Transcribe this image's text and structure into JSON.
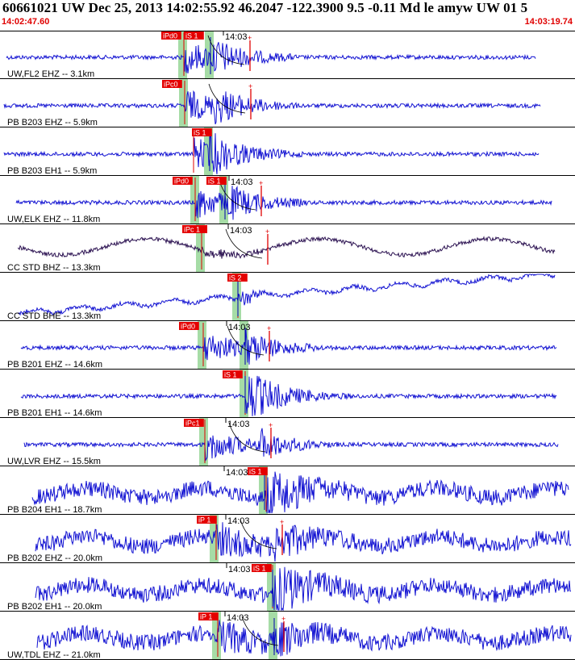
{
  "header": {
    "title": "60661021 UW Dec 25, 2013 14:02:55.92   46.2047 -122.3900  9.5 -0.11 Md le amyw UW 01   5",
    "start_time": "14:02:47.60",
    "end_time": "14:03:19.74"
  },
  "colors": {
    "background": "#ffffff",
    "trace": "#1414d2",
    "broadband_trace": "#2a1050",
    "pick_label_bg": "#e40000",
    "pick_label_text": "#ffffff",
    "window_band": "#a6dca6",
    "pick_line": "#e00000",
    "divider": "#000000",
    "timing_red": "#e00000"
  },
  "traces": [
    {
      "label": "UW,FL2 EHZ -- 3.1km",
      "tick_label": "14:03",
      "picks": [
        "iPd0",
        "iS 1"
      ],
      "coda": true,
      "kind": "short"
    },
    {
      "label": "PB B203 EHZ -- 5.9km",
      "tick_label": "",
      "picks": [
        "iPc0"
      ],
      "coda": true,
      "kind": "short"
    },
    {
      "label": "PB B203 EH1 -- 5.9km",
      "tick_label": "",
      "picks": [
        "iS 1"
      ],
      "coda": false,
      "kind": "short"
    },
    {
      "label": "UW,ELK EHZ -- 11.8km",
      "tick_label": "14:03",
      "picks": [
        "iPd0",
        "iS 1"
      ],
      "coda": true,
      "kind": "short"
    },
    {
      "label": "CC STD BHZ -- 13.3km",
      "tick_label": "14:03",
      "picks": [
        "iPc 1"
      ],
      "coda": true,
      "kind": "broadband"
    },
    {
      "label": "CC STD BHE -- 13.3km",
      "tick_label": "",
      "picks": [
        "iS 2"
      ],
      "coda": false,
      "kind": "drift"
    },
    {
      "label": "PB B201 EHZ -- 14.6km",
      "tick_label": "14:03",
      "picks": [
        "iPd0"
      ],
      "coda": true,
      "kind": "short"
    },
    {
      "label": "PB B201 EH1 -- 14.6km",
      "tick_label": "",
      "picks": [
        "iS 1"
      ],
      "coda": false,
      "kind": "short"
    },
    {
      "label": "UW,LVR EHZ -- 15.5km",
      "tick_label": "14:03",
      "picks": [
        "iPc1"
      ],
      "coda": true,
      "kind": "short"
    },
    {
      "label": "PB B204 EH1 -- 18.7km",
      "tick_label": "14:03",
      "picks": [
        "iS 1"
      ],
      "coda": false,
      "kind": "noisy"
    },
    {
      "label": "PB B202 EHZ -- 20.0km",
      "tick_label": "14:03",
      "picks": [
        "iP 1"
      ],
      "coda": true,
      "kind": "noisy"
    },
    {
      "label": "PB B202 EH1 -- 20.0km",
      "tick_label": "14:03",
      "picks": [
        "iS 1"
      ],
      "coda": false,
      "kind": "noisy"
    },
    {
      "label": "UW,TDL EHZ -- 21.0km",
      "tick_label": "14:03",
      "picks": [
        "iP 1"
      ],
      "coda": true,
      "kind": "noisy"
    }
  ]
}
